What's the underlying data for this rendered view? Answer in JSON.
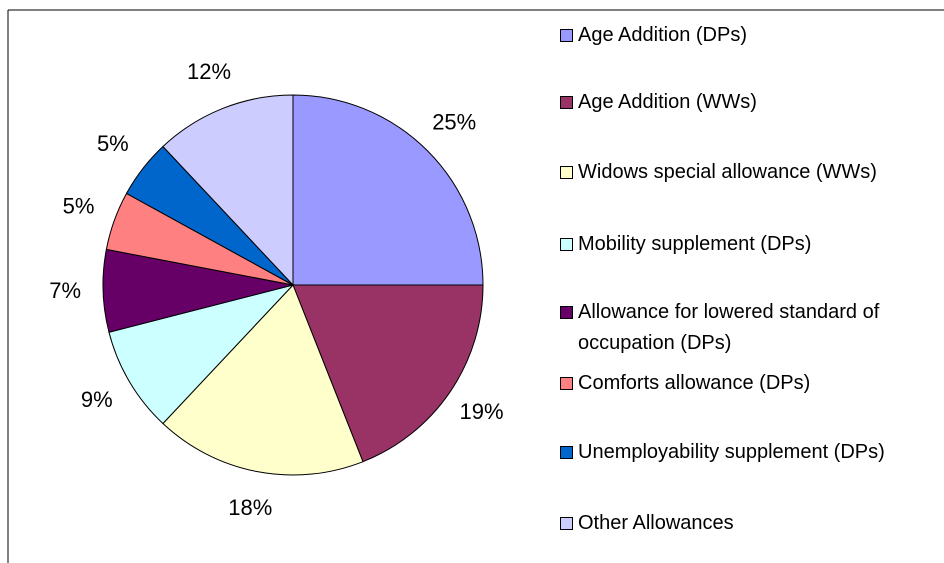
{
  "chart_data": {
    "type": "pie",
    "categories": [
      "Age Addition (DPs)",
      "Age Addition (WWs)",
      "Widows special allowance (WWs)",
      "Mobility supplement (DPs)",
      "Allowance for lowered standard of occupation (DPs)",
      "Comforts allowance (DPs)",
      "Unemployability supplement (DPs)",
      "Other Allowances"
    ],
    "values": [
      25,
      19,
      18,
      9,
      7,
      5,
      5,
      12
    ],
    "value_labels": [
      "25%",
      "19%",
      "18%",
      "9%",
      "7%",
      "5%",
      "5%",
      "12%"
    ],
    "colors": [
      "#9999ff",
      "#993366",
      "#ffffcc",
      "#ccffff",
      "#660066",
      "#ff8080",
      "#0066cc",
      "#ccccff"
    ],
    "legend": "right"
  }
}
